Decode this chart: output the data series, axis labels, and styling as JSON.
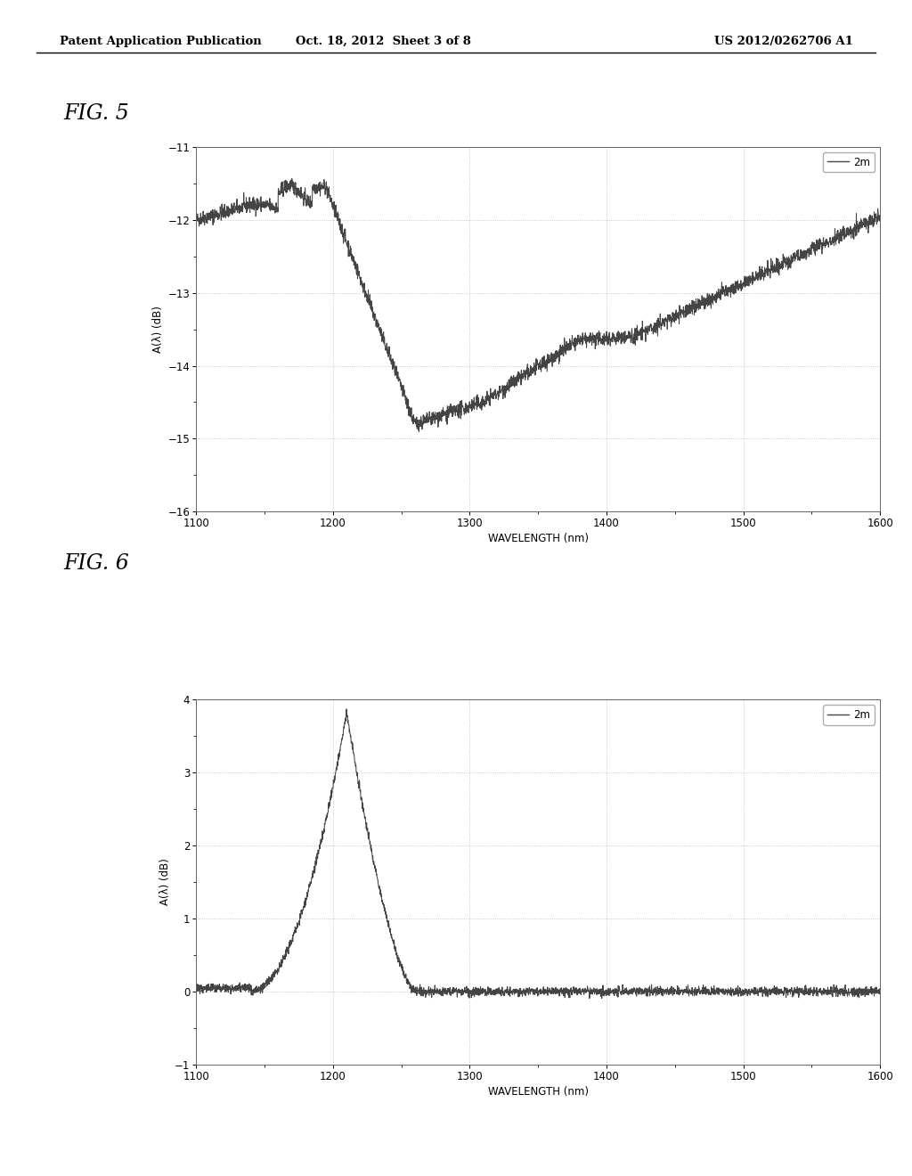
{
  "header_left": "Patent Application Publication",
  "header_mid": "Oct. 18, 2012  Sheet 3 of 8",
  "header_right": "US 2012/0262706 A1",
  "fig5_label": "FIG. 5",
  "fig6_label": "FIG. 6",
  "xlabel": "WAVELENGTH (nm)",
  "fig5_ylabel": "A(λ) (dB)",
  "fig6_ylabel": "A(λ) (dB)",
  "legend_label": "2m",
  "fig5_xlim": [
    1100,
    1600
  ],
  "fig5_ylim": [
    -16,
    -11
  ],
  "fig5_yticks": [
    -16,
    -15,
    -14,
    -13,
    -12,
    -11
  ],
  "fig6_xlim": [
    1100,
    1600
  ],
  "fig6_ylim": [
    -1,
    4
  ],
  "fig6_yticks": [
    -1,
    0,
    1,
    2,
    3,
    4
  ],
  "xticks": [
    1100,
    1200,
    1300,
    1400,
    1500,
    1600
  ],
  "bg_color": "#ffffff",
  "line_color": "#444444",
  "grid_color": "#bbbbbb",
  "header_line_color": "#000000"
}
